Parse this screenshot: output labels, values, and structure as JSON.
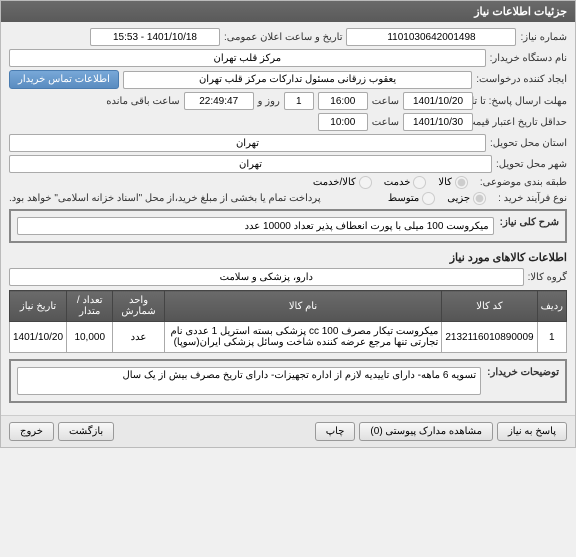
{
  "header": {
    "title": "جزئیات اطلاعات نیاز"
  },
  "fields": {
    "niaz_number_label": "شماره نیاز:",
    "niaz_number": "1101030642001498",
    "announce_label": "تاریخ و ساعت اعلان عمومی:",
    "announce_value": "1401/10/18 - 15:53",
    "buyer_device_label": "نام دستگاه خریدار:",
    "buyer_device": "مرکز قلب تهران",
    "requester_label": "ایجاد کننده درخواست:",
    "requester": "یعقوب زرقانی مسئول تدارکات مرکز قلب تهران",
    "contact_btn": "اطلاعات تماس خریدار",
    "reply_deadline_label": "مهلت ارسال پاسخ: تا تاریخ:",
    "reply_date": "1401/10/20",
    "time_label": "ساعت",
    "reply_time": "16:00",
    "day_label": "روز و",
    "day_count": "1",
    "remaining_time": "22:49:47",
    "remaining_label": "ساعت باقی مانده",
    "price_valid_label": "حداقل تاریخ اعتبار قیمت: تا تاریخ:",
    "price_date": "1401/10/30",
    "price_time": "10:00",
    "province_label": "استان محل تحویل:",
    "province": "تهران",
    "city_label": "شهر محل تحویل:",
    "city": "تهران",
    "category_label": "طبقه بندی موضوعی:",
    "cat_kala": "کالا",
    "cat_khadamat": "خدمت",
    "cat_both": "کالا/خدمت",
    "purchase_type_label": "نوع فرآیند خرید :",
    "pt_jozi": "جزیی",
    "pt_motavasset": "متوسط",
    "payment_note": "پرداخت تمام یا بخشی از مبلغ خرید،از محل \"اسناد خزانه اسلامی\" خواهد بود."
  },
  "need_section": {
    "title_label": "شرح کلی نیاز:",
    "title_value": "میکروست 100 میلی با پورت انعطاف پذیر تعداد 10000 عدد",
    "items_header": "اطلاعات کالاهای مورد نیاز",
    "group_label": "گروه کالا:",
    "group_value": "دارو، پزشکی و سلامت"
  },
  "table": {
    "columns": [
      "ردیف",
      "کد کالا",
      "نام کالا",
      "واحد شمارش",
      "تعداد / متدار",
      "تاریخ نیاز"
    ],
    "rows": [
      [
        "1",
        "2132116010890009",
        "میکروست تیکار مصرف cc 100 پزشکی بسته استریل 1 عددی نام تجارتی تنها مرجع عرضه کننده شاخت وسائل پزشکی ایران(سوپا)",
        "عدد",
        "10,000",
        "1401/10/20"
      ]
    ]
  },
  "explain": {
    "label": "توضیحات خریدار:",
    "value": "تسویه 6 ماهه- دارای تاییدیه لازم از اداره تجهیزات- دارای تاریخ مصرف بیش از یک سال"
  },
  "buttons": {
    "reply": "پاسخ به نیاز",
    "attachments": "مشاهده مدارک پیوستی (0)",
    "print": "چاپ",
    "back": "بازگشت",
    "exit": "خروج"
  }
}
